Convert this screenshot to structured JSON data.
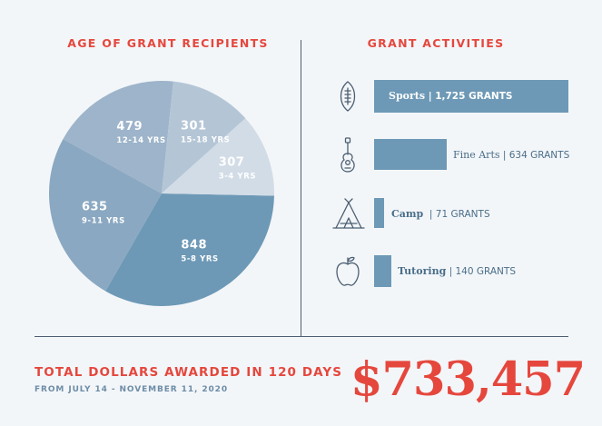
{
  "chart_data": [
    {
      "type": "pie",
      "title": "AGE OF GRANT RECIPIENTS",
      "slices": [
        {
          "value": 848,
          "label": "848",
          "category": "5-8 YRS",
          "color": "#6d99b6"
        },
        {
          "value": 635,
          "label": "635",
          "category": "9-11 YRS",
          "color": "#8aa8c1"
        },
        {
          "value": 479,
          "label": "479",
          "category": "12-14 YRS",
          "color": "#9db4ca"
        },
        {
          "value": 301,
          "label": "301",
          "category": "15-18 YRS",
          "color": "#b4c6d6"
        },
        {
          "value": 307,
          "label": "307",
          "category": "3-4 YRS",
          "color": "#d2dce6"
        }
      ]
    },
    {
      "type": "bar",
      "orientation": "horizontal",
      "title": "GRANT ACTIVITIES",
      "bar_color": "#6d99b6",
      "categories": [
        "Sports",
        "Fine Arts",
        "Camp",
        "Tutoring"
      ],
      "values": [
        1725,
        634,
        71,
        140
      ],
      "value_labels": [
        "1,725 GRANTS",
        "634 GRANTS",
        "71 GRANTS",
        "140 GRANTS"
      ],
      "icons": [
        "football-icon",
        "guitar-icon",
        "tent-icon",
        "apple-icon"
      ]
    }
  ],
  "summary": {
    "title": "TOTAL DOLLARS AWARDED IN 120 DAYS",
    "subtitle": "FROM JULY 14 - NOVEMBER 11, 2020",
    "amount": "$733,457"
  },
  "colors": {
    "accent": "#e5473d",
    "bar": "#6d99b6",
    "divider": "#4c5f72"
  }
}
